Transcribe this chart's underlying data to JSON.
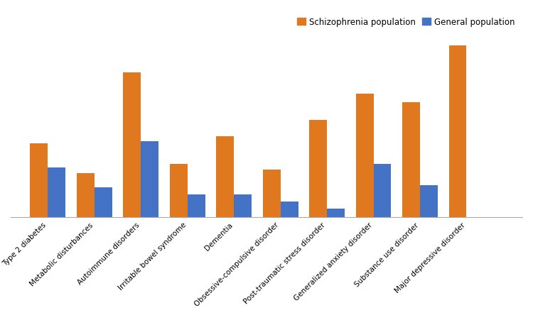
{
  "categories": [
    "Type 2 diabetes",
    "Metabolic disturbances",
    "Autoimmune disorders",
    "Irritable bowel syndrome",
    "Dementia",
    "Obsessive-compulsive disorder",
    "Post-traumatic stress disorder",
    "Generalized anxiety disorder",
    "Substance use disorder",
    "Major depressive disorder"
  ],
  "schizophrenia": [
    0.42,
    0.25,
    0.82,
    0.3,
    0.46,
    0.27,
    0.55,
    0.7,
    0.65,
    0.97
  ],
  "general": [
    0.28,
    0.17,
    0.43,
    0.13,
    0.13,
    0.09,
    0.05,
    0.3,
    0.18,
    0.0
  ],
  "orange_color": "#E07820",
  "blue_color": "#4472C4",
  "background_color": "#FFFFFF",
  "legend_labels": [
    "Schizophrenia population",
    "General population"
  ],
  "bar_width": 0.38,
  "figsize": [
    7.5,
    4.52
  ],
  "dpi": 100,
  "xlim_left": -0.8,
  "xlim_right": 10.2
}
